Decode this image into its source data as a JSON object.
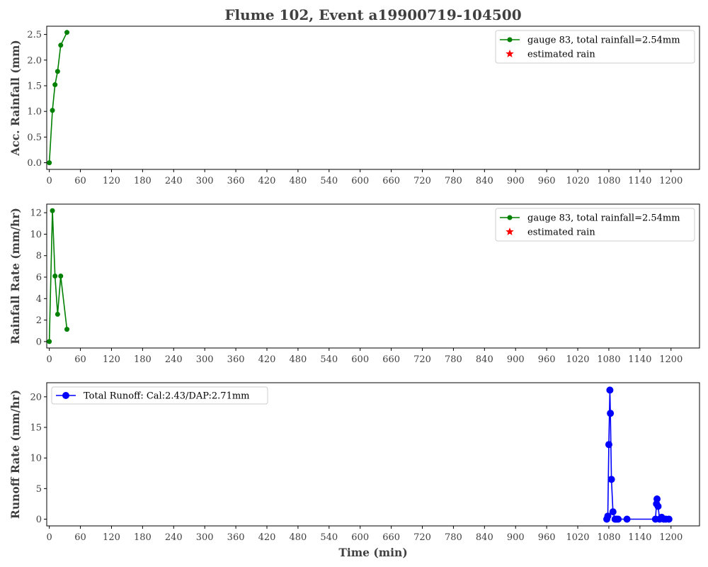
{
  "figure": {
    "title": "Flume 102, Event a19900719-104500",
    "xlabel": "Time (min)"
  },
  "colors": {
    "rain": "#008000",
    "estimated": "#ff0000",
    "runoff": "#0000ff",
    "text": "#404040"
  },
  "chart_data": [
    {
      "type": "line",
      "ylabel": "Acc. Rainfall (mm)",
      "xlim": [
        -5,
        1255
      ],
      "ylim": [
        -0.13,
        2.66
      ],
      "xticks": [
        0,
        60,
        120,
        180,
        240,
        300,
        360,
        420,
        480,
        540,
        600,
        660,
        720,
        780,
        840,
        900,
        960,
        1020,
        1080,
        1140,
        1200
      ],
      "yticks": [
        0.0,
        0.5,
        1.0,
        1.5,
        2.0,
        2.5
      ],
      "ytick_labels": [
        "0.0",
        "0.5",
        "1.0",
        "1.5",
        "2.0",
        "2.5"
      ],
      "grid": false,
      "legend_position": "top-right",
      "series": [
        {
          "name": "gauge 83, total rainfall=2.54mm",
          "color": "#008000",
          "marker": "circle",
          "x": [
            0,
            6,
            11,
            16,
            22,
            34
          ],
          "y": [
            0.0,
            1.02,
            1.52,
            1.78,
            2.29,
            2.54
          ]
        },
        {
          "name": "estimated rain",
          "color": "#ff0000",
          "marker": "star",
          "x": [],
          "y": []
        }
      ]
    },
    {
      "type": "line",
      "ylabel": "Rainfall Rate (mm/hr)",
      "xlim": [
        -5,
        1255
      ],
      "ylim": [
        -0.6,
        12.8
      ],
      "xticks": [
        0,
        60,
        120,
        180,
        240,
        300,
        360,
        420,
        480,
        540,
        600,
        660,
        720,
        780,
        840,
        900,
        960,
        1020,
        1080,
        1140,
        1200
      ],
      "yticks": [
        0,
        2,
        4,
        6,
        8,
        10,
        12
      ],
      "ytick_labels": [
        "0",
        "2",
        "4",
        "6",
        "8",
        "10",
        "12"
      ],
      "grid": false,
      "legend_position": "top-right",
      "series": [
        {
          "name": "gauge 83, total rainfall=2.54mm",
          "color": "#008000",
          "marker": "circle",
          "x": [
            0,
            6,
            11,
            16,
            22,
            34
          ],
          "y": [
            0.0,
            12.19,
            6.1,
            2.54,
            6.1,
            1.14
          ]
        },
        {
          "name": "estimated rain",
          "color": "#ff0000",
          "marker": "star",
          "x": [],
          "y": []
        }
      ]
    },
    {
      "type": "line",
      "ylabel": "Runoff Rate (mm/hr)",
      "xlim": [
        -5,
        1255
      ],
      "ylim": [
        -1.1,
        22.3
      ],
      "xticks": [
        0,
        60,
        120,
        180,
        240,
        300,
        360,
        420,
        480,
        540,
        600,
        660,
        720,
        780,
        840,
        900,
        960,
        1020,
        1080,
        1140,
        1200
      ],
      "yticks": [
        0,
        5,
        10,
        15,
        20
      ],
      "ytick_labels": [
        "0",
        "5",
        "10",
        "15",
        "20"
      ],
      "grid": false,
      "legend_position": "top-left",
      "series": [
        {
          "name": "Total Runoff: Cal:2.43/DAP:2.71mm",
          "color": "#0000ff",
          "marker": "circle",
          "x": [
            1076,
            1078,
            1080,
            1082,
            1083,
            1085,
            1088,
            1092,
            1095,
            1098,
            1115,
            1170,
            1172,
            1173,
            1175,
            1178,
            1182,
            1186,
            1190,
            1196
          ],
          "y": [
            0.0,
            0.5,
            12.2,
            21.1,
            17.3,
            6.5,
            1.2,
            0.0,
            0.0,
            0.0,
            0.0,
            0.0,
            2.5,
            3.3,
            2.1,
            0.0,
            0.3,
            0.0,
            0.0,
            0.0
          ]
        }
      ]
    }
  ]
}
